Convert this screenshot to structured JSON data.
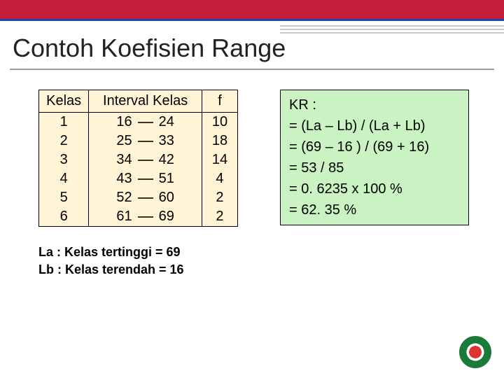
{
  "title": "Contoh Koefisien Range",
  "table": {
    "headers": {
      "kelas": "Kelas",
      "interval": "Interval Kelas",
      "f": "f"
    },
    "rows": [
      {
        "k": "1",
        "lo": "16",
        "hi": "24",
        "f": "10"
      },
      {
        "k": "2",
        "lo": "25",
        "hi": "33",
        "f": "18"
      },
      {
        "k": "3",
        "lo": "34",
        "hi": "42",
        "f": "14"
      },
      {
        "k": "4",
        "lo": "43",
        "hi": "51",
        "f": "4"
      },
      {
        "k": "5",
        "lo": "52",
        "hi": "60",
        "f": "2"
      },
      {
        "k": "6",
        "lo": "61",
        "hi": "69",
        "f": "2"
      }
    ],
    "colors": {
      "bg": "#fff4d6",
      "border": "#000000"
    }
  },
  "notes": {
    "line1": "La : Kelas tertinggi  = 69",
    "line2": "Lb : Kelas terendah = 16"
  },
  "calc": {
    "l0": "KR :",
    "l1": "= (La – Lb) / (La + Lb)",
    "l2": "= (69 – 16 ) / (69 + 16)",
    "l3": "= 53 / 85",
    "l4": "= 0. 6235 x 100 %",
    "l5": "= 62. 35 %",
    "bg": "#caf2c2"
  },
  "header_colors": {
    "red": "#c41e3a",
    "blue": "#1a4ba0"
  }
}
